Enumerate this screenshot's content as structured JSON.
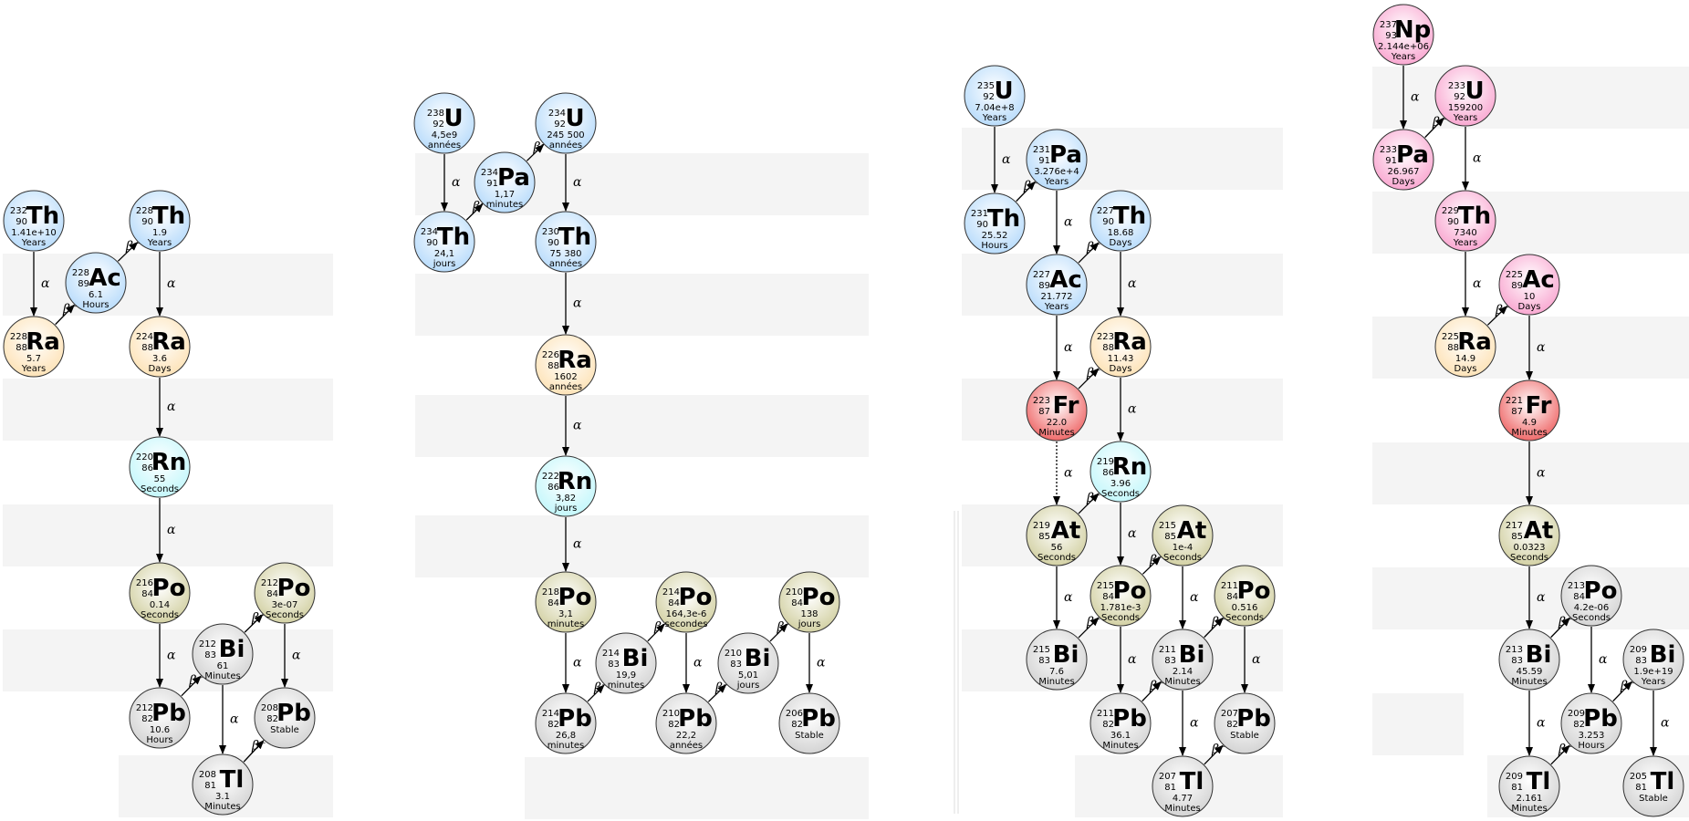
{
  "colors": {
    "stripe": "#f4f4f4",
    "Th": "#b9dcfb",
    "U": "#b9dcfb",
    "Pa": "#b9dcfb",
    "Ac": "#b9dcfb",
    "Ra": "#fde3b8",
    "Rn": "#c4f7fb",
    "Fr": "#ef6a6a",
    "Po": "#d3d1a4",
    "At": "#d3d1a4",
    "Bi": "#d4d4d4",
    "Pb": "#d4d4d4",
    "Tl": "#d4d4d4",
    "Np_series": "#f9a8d1"
  },
  "chains": [
    {
      "nuclides": [
        {
          "id": "th232",
          "sym": "Th",
          "a": "232",
          "z": "90",
          "half": "1.41e+10",
          "unit": "Years"
        },
        {
          "id": "ac228",
          "sym": "Ac",
          "a": "228",
          "z": "89",
          "half": "6.1",
          "unit": "Hours"
        },
        {
          "id": "th228",
          "sym": "Th",
          "a": "228",
          "z": "90",
          "half": "1.9",
          "unit": "Years"
        },
        {
          "id": "ra228",
          "sym": "Ra",
          "a": "228",
          "z": "88",
          "half": "5.7",
          "unit": "Years"
        },
        {
          "id": "ra224",
          "sym": "Ra",
          "a": "224",
          "z": "88",
          "half": "3.6",
          "unit": "Days"
        },
        {
          "id": "rn220",
          "sym": "Rn",
          "a": "220",
          "z": "86",
          "half": "55",
          "unit": "Seconds"
        },
        {
          "id": "po216",
          "sym": "Po",
          "a": "216",
          "z": "84",
          "half": "0.14",
          "unit": "Seconds"
        },
        {
          "id": "po212",
          "sym": "Po",
          "a": "212",
          "z": "84",
          "half": "3e-07",
          "unit": "Seconds"
        },
        {
          "id": "bi212",
          "sym": "Bi",
          "a": "212",
          "z": "83",
          "half": "61",
          "unit": "Minutes"
        },
        {
          "id": "pb212",
          "sym": "Pb",
          "a": "212",
          "z": "82",
          "half": "10.6",
          "unit": "Hours"
        },
        {
          "id": "pb208",
          "sym": "Pb",
          "a": "208",
          "z": "82",
          "half": "Stable",
          "unit": ""
        },
        {
          "id": "tl208",
          "sym": "Tl",
          "a": "208",
          "z": "81",
          "half": "3.1",
          "unit": "Minutes"
        }
      ],
      "decays": [
        {
          "from": "th232",
          "to": "ra228",
          "label": "α"
        },
        {
          "from": "ra228",
          "to": "ac228",
          "label": "β⁻"
        },
        {
          "from": "ac228",
          "to": "th228",
          "label": "β⁻"
        },
        {
          "from": "th228",
          "to": "ra224",
          "label": "α"
        },
        {
          "from": "ra224",
          "to": "rn220",
          "label": "α"
        },
        {
          "from": "rn220",
          "to": "po216",
          "label": "α"
        },
        {
          "from": "po216",
          "to": "pb212",
          "label": "α"
        },
        {
          "from": "pb212",
          "to": "bi212",
          "label": "β⁻"
        },
        {
          "from": "bi212",
          "to": "po212",
          "label": "β⁻"
        },
        {
          "from": "po212",
          "to": "pb208",
          "label": "α"
        },
        {
          "from": "bi212",
          "to": "tl208",
          "label": "α"
        },
        {
          "from": "tl208",
          "to": "pb208",
          "label": "β⁻"
        }
      ]
    },
    {
      "nuclides": [
        {
          "id": "u238",
          "sym": "U",
          "a": "238",
          "z": "92",
          "half": "4,5e9",
          "unit": "années"
        },
        {
          "id": "th234",
          "sym": "Th",
          "a": "234",
          "z": "90",
          "half": "24,1",
          "unit": "jours"
        },
        {
          "id": "pa234",
          "sym": "Pa",
          "a": "234",
          "z": "91",
          "half": "1,17",
          "unit": "minutes"
        },
        {
          "id": "u234",
          "sym": "U",
          "a": "234",
          "z": "92",
          "half": "245 500",
          "unit": "années"
        },
        {
          "id": "th230",
          "sym": "Th",
          "a": "230",
          "z": "90",
          "half": "75 380",
          "unit": "années"
        },
        {
          "id": "ra226",
          "sym": "Ra",
          "a": "226",
          "z": "88",
          "half": "1602",
          "unit": "années"
        },
        {
          "id": "rn222",
          "sym": "Rn",
          "a": "222",
          "z": "86",
          "half": "3,82",
          "unit": "jours"
        },
        {
          "id": "po218",
          "sym": "Po",
          "a": "218",
          "z": "84",
          "half": "3,1",
          "unit": "minutes"
        },
        {
          "id": "pb214",
          "sym": "Pb",
          "a": "214",
          "z": "82",
          "half": "26,8",
          "unit": "minutes"
        },
        {
          "id": "bi214",
          "sym": "Bi",
          "a": "214",
          "z": "83",
          "half": "19,9",
          "unit": "minutes"
        },
        {
          "id": "po214",
          "sym": "Po",
          "a": "214",
          "z": "84",
          "half": "164,3e-6",
          "unit": "secondes"
        },
        {
          "id": "pb210",
          "sym": "Pb",
          "a": "210",
          "z": "82",
          "half": "22,2",
          "unit": "années"
        },
        {
          "id": "bi210",
          "sym": "Bi",
          "a": "210",
          "z": "83",
          "half": "5,01",
          "unit": "jours"
        },
        {
          "id": "po210",
          "sym": "Po",
          "a": "210",
          "z": "84",
          "half": "138",
          "unit": "jours"
        },
        {
          "id": "pb206",
          "sym": "Pb",
          "a": "206",
          "z": "82",
          "half": "Stable",
          "unit": ""
        }
      ],
      "decays": [
        {
          "from": "u238",
          "to": "th234",
          "label": "α"
        },
        {
          "from": "th234",
          "to": "pa234",
          "label": "β⁻"
        },
        {
          "from": "pa234",
          "to": "u234",
          "label": "β⁻"
        },
        {
          "from": "u234",
          "to": "th230",
          "label": "α"
        },
        {
          "from": "th230",
          "to": "ra226",
          "label": "α"
        },
        {
          "from": "ra226",
          "to": "rn222",
          "label": "α"
        },
        {
          "from": "rn222",
          "to": "po218",
          "label": "α"
        },
        {
          "from": "po218",
          "to": "pb214",
          "label": "α"
        },
        {
          "from": "pb214",
          "to": "bi214",
          "label": "β⁻"
        },
        {
          "from": "bi214",
          "to": "po214",
          "label": "β⁻"
        },
        {
          "from": "po214",
          "to": "pb210",
          "label": "α"
        },
        {
          "from": "pb210",
          "to": "bi210",
          "label": "β⁻"
        },
        {
          "from": "bi210",
          "to": "po210",
          "label": "β⁻"
        },
        {
          "from": "po210",
          "to": "pb206",
          "label": "α"
        }
      ]
    },
    {
      "nuclides": [
        {
          "id": "u235",
          "sym": "U",
          "a": "235",
          "z": "92",
          "half": "7.04e+8",
          "unit": "Years"
        },
        {
          "id": "th231",
          "sym": "Th",
          "a": "231",
          "z": "90",
          "half": "25.52",
          "unit": "Hours"
        },
        {
          "id": "pa231",
          "sym": "Pa",
          "a": "231",
          "z": "91",
          "half": "3.276e+4",
          "unit": "Years"
        },
        {
          "id": "ac227",
          "sym": "Ac",
          "a": "227",
          "z": "89",
          "half": "21.772",
          "unit": "Years"
        },
        {
          "id": "th227",
          "sym": "Th",
          "a": "227",
          "z": "90",
          "half": "18.68",
          "unit": "Days"
        },
        {
          "id": "fr223",
          "sym": "Fr",
          "a": "223",
          "z": "87",
          "half": "22.0",
          "unit": "Minutes"
        },
        {
          "id": "ra223",
          "sym": "Ra",
          "a": "223",
          "z": "88",
          "half": "11.43",
          "unit": "Days"
        },
        {
          "id": "rn219",
          "sym": "Rn",
          "a": "219",
          "z": "86",
          "half": "3.96",
          "unit": "Seconds"
        },
        {
          "id": "at219",
          "sym": "At",
          "a": "219",
          "z": "85",
          "half": "56",
          "unit": "Seconds"
        },
        {
          "id": "po215",
          "sym": "Po",
          "a": "215",
          "z": "84",
          "half": "1.781e-3",
          "unit": "Seconds"
        },
        {
          "id": "at215",
          "sym": "At",
          "a": "215",
          "z": "85",
          "half": "1e-4",
          "unit": "Seconds"
        },
        {
          "id": "bi215",
          "sym": "Bi",
          "a": "215",
          "z": "83",
          "half": "7.6",
          "unit": "Minutes"
        },
        {
          "id": "pb211",
          "sym": "Pb",
          "a": "211",
          "z": "82",
          "half": "36.1",
          "unit": "Minutes"
        },
        {
          "id": "bi211",
          "sym": "Bi",
          "a": "211",
          "z": "83",
          "half": "2.14",
          "unit": "Minutes"
        },
        {
          "id": "po211",
          "sym": "Po",
          "a": "211",
          "z": "84",
          "half": "0.516",
          "unit": "Seconds"
        },
        {
          "id": "tl207",
          "sym": "Tl",
          "a": "207",
          "z": "81",
          "half": "4.77",
          "unit": "Minutes"
        },
        {
          "id": "pb207",
          "sym": "Pb",
          "a": "207",
          "z": "82",
          "half": "Stable",
          "unit": ""
        }
      ],
      "decays": [
        {
          "from": "u235",
          "to": "th231",
          "label": "α"
        },
        {
          "from": "th231",
          "to": "pa231",
          "label": "β⁻"
        },
        {
          "from": "pa231",
          "to": "ac227",
          "label": "α"
        },
        {
          "from": "ac227",
          "to": "th227",
          "label": "β⁻"
        },
        {
          "from": "ac227",
          "to": "fr223",
          "label": "α"
        },
        {
          "from": "th227",
          "to": "ra223",
          "label": "α"
        },
        {
          "from": "fr223",
          "to": "ra223",
          "label": "β⁻"
        },
        {
          "from": "fr223",
          "to": "at219",
          "label": "α",
          "dotted": true
        },
        {
          "from": "ra223",
          "to": "rn219",
          "label": "α"
        },
        {
          "from": "at219",
          "to": "rn219",
          "label": "β⁻"
        },
        {
          "from": "at219",
          "to": "bi215",
          "label": "α"
        },
        {
          "from": "rn219",
          "to": "po215",
          "label": "α"
        },
        {
          "from": "po215",
          "to": "at215",
          "label": "β⁻"
        },
        {
          "from": "bi215",
          "to": "po215",
          "label": "β⁻"
        },
        {
          "from": "at215",
          "to": "bi211",
          "label": "α"
        },
        {
          "from": "po215",
          "to": "pb211",
          "label": "α"
        },
        {
          "from": "pb211",
          "to": "bi211",
          "label": "β⁻"
        },
        {
          "from": "bi211",
          "to": "po211",
          "label": "β⁻"
        },
        {
          "from": "bi211",
          "to": "tl207",
          "label": "α"
        },
        {
          "from": "po211",
          "to": "pb207",
          "label": "α"
        },
        {
          "from": "tl207",
          "to": "pb207",
          "label": "β⁻"
        }
      ]
    },
    {
      "nuclides": [
        {
          "id": "np237",
          "sym": "Np",
          "a": "237",
          "z": "93",
          "half": "2.144e+06",
          "unit": "Years",
          "np": true
        },
        {
          "id": "pa233",
          "sym": "Pa",
          "a": "233",
          "z": "91",
          "half": "26.967",
          "unit": "Days",
          "np": true
        },
        {
          "id": "u233",
          "sym": "U",
          "a": "233",
          "z": "92",
          "half": "159200",
          "unit": "Years",
          "np": true
        },
        {
          "id": "th229",
          "sym": "Th",
          "a": "229",
          "z": "90",
          "half": "7340",
          "unit": "Years",
          "np": true
        },
        {
          "id": "ra225",
          "sym": "Ra",
          "a": "225",
          "z": "88",
          "half": "14.9",
          "unit": "Days"
        },
        {
          "id": "ac225",
          "sym": "Ac",
          "a": "225",
          "z": "89",
          "half": "10",
          "unit": "Days",
          "np": true
        },
        {
          "id": "fr221",
          "sym": "Fr",
          "a": "221",
          "z": "87",
          "half": "4.9",
          "unit": "Minutes"
        },
        {
          "id": "at217",
          "sym": "At",
          "a": "217",
          "z": "85",
          "half": "0.0323",
          "unit": "Seconds"
        },
        {
          "id": "po213",
          "sym": "Po",
          "a": "213",
          "z": "84",
          "half": "4.2e-06",
          "unit": "Seconds",
          "grey": true
        },
        {
          "id": "bi213",
          "sym": "Bi",
          "a": "213",
          "z": "83",
          "half": "45.59",
          "unit": "Minutes"
        },
        {
          "id": "pb209",
          "sym": "Pb",
          "a": "209",
          "z": "82",
          "half": "3.253",
          "unit": "Hours"
        },
        {
          "id": "bi209",
          "sym": "Bi",
          "a": "209",
          "z": "83",
          "half": "1.9e+19",
          "unit": "Years"
        },
        {
          "id": "tl209",
          "sym": "Tl",
          "a": "209",
          "z": "81",
          "half": "2.161",
          "unit": "Minutes"
        },
        {
          "id": "tl205",
          "sym": "Tl",
          "a": "205",
          "z": "81",
          "half": "Stable",
          "unit": ""
        }
      ],
      "decays": [
        {
          "from": "np237",
          "to": "pa233",
          "label": "α"
        },
        {
          "from": "pa233",
          "to": "u233",
          "label": "β⁻"
        },
        {
          "from": "u233",
          "to": "th229",
          "label": "α"
        },
        {
          "from": "th229",
          "to": "ra225",
          "label": "α"
        },
        {
          "from": "ra225",
          "to": "ac225",
          "label": "β⁻"
        },
        {
          "from": "ac225",
          "to": "fr221",
          "label": "α"
        },
        {
          "from": "fr221",
          "to": "at217",
          "label": "α"
        },
        {
          "from": "at217",
          "to": "bi213",
          "label": "α"
        },
        {
          "from": "bi213",
          "to": "po213",
          "label": "β⁻"
        },
        {
          "from": "po213",
          "to": "pb209",
          "label": "α"
        },
        {
          "from": "bi213",
          "to": "tl209",
          "label": "α"
        },
        {
          "from": "tl209",
          "to": "pb209",
          "label": "β⁻"
        },
        {
          "from": "pb209",
          "to": "bi209",
          "label": "β⁻"
        },
        {
          "from": "bi209",
          "to": "tl205",
          "label": "α"
        }
      ]
    }
  ]
}
